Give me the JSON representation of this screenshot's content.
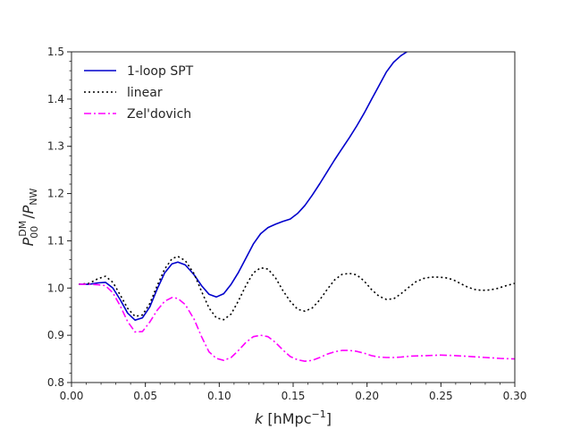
{
  "chart_data": {
    "type": "line",
    "xlabel": {
      "italic": "k",
      "pre": " [",
      "unit": "hMpc",
      "sup": "−1",
      "post": "]"
    },
    "ylabel": {
      "p1": "P",
      "sup1": "DM",
      "sub1": "00",
      "sep": "/",
      "p2": "P",
      "sub2": "NW"
    },
    "xlim": [
      0.0,
      0.3
    ],
    "ylim": [
      0.8,
      1.5
    ],
    "xticks": [
      "0.00",
      "0.05",
      "0.10",
      "0.15",
      "0.20",
      "0.25",
      "0.30"
    ],
    "yticks": [
      "0.8",
      "0.9",
      "1.0",
      "1.1",
      "1.2",
      "1.3",
      "1.4",
      "1.5"
    ],
    "grid": false,
    "legend_position": "top-left",
    "series": [
      {
        "name": "1-loop SPT",
        "color": "#0000cc",
        "style": "solid",
        "points": [
          [
            0.005,
            1.008
          ],
          [
            0.012,
            1.008
          ],
          [
            0.018,
            1.011
          ],
          [
            0.023,
            1.012
          ],
          [
            0.028,
            1.0
          ],
          [
            0.033,
            0.975
          ],
          [
            0.038,
            0.947
          ],
          [
            0.043,
            0.932
          ],
          [
            0.048,
            0.937
          ],
          [
            0.053,
            0.96
          ],
          [
            0.058,
            0.998
          ],
          [
            0.063,
            1.032
          ],
          [
            0.068,
            1.051
          ],
          [
            0.072,
            1.055
          ],
          [
            0.077,
            1.049
          ],
          [
            0.083,
            1.028
          ],
          [
            0.088,
            1.005
          ],
          [
            0.093,
            0.987
          ],
          [
            0.098,
            0.981
          ],
          [
            0.103,
            0.988
          ],
          [
            0.108,
            1.008
          ],
          [
            0.113,
            1.033
          ],
          [
            0.118,
            1.063
          ],
          [
            0.123,
            1.093
          ],
          [
            0.128,
            1.115
          ],
          [
            0.133,
            1.128
          ],
          [
            0.138,
            1.135
          ],
          [
            0.143,
            1.141
          ],
          [
            0.148,
            1.146
          ],
          [
            0.153,
            1.158
          ],
          [
            0.158,
            1.175
          ],
          [
            0.163,
            1.197
          ],
          [
            0.168,
            1.221
          ],
          [
            0.173,
            1.246
          ],
          [
            0.178,
            1.271
          ],
          [
            0.183,
            1.295
          ],
          [
            0.188,
            1.318
          ],
          [
            0.193,
            1.343
          ],
          [
            0.198,
            1.37
          ],
          [
            0.203,
            1.399
          ],
          [
            0.208,
            1.428
          ],
          [
            0.213,
            1.457
          ],
          [
            0.218,
            1.478
          ],
          [
            0.223,
            1.492
          ],
          [
            0.227,
            1.5
          ]
        ]
      },
      {
        "name": "linear",
        "color": "#000000",
        "style": "dotted",
        "points": [
          [
            0.005,
            1.008
          ],
          [
            0.012,
            1.01
          ],
          [
            0.018,
            1.02
          ],
          [
            0.023,
            1.025
          ],
          [
            0.028,
            1.012
          ],
          [
            0.033,
            0.985
          ],
          [
            0.038,
            0.957
          ],
          [
            0.043,
            0.94
          ],
          [
            0.048,
            0.943
          ],
          [
            0.053,
            0.967
          ],
          [
            0.058,
            1.005
          ],
          [
            0.063,
            1.04
          ],
          [
            0.068,
            1.062
          ],
          [
            0.072,
            1.067
          ],
          [
            0.077,
            1.058
          ],
          [
            0.083,
            1.03
          ],
          [
            0.088,
            0.993
          ],
          [
            0.093,
            0.958
          ],
          [
            0.098,
            0.937
          ],
          [
            0.103,
            0.933
          ],
          [
            0.108,
            0.945
          ],
          [
            0.113,
            0.973
          ],
          [
            0.118,
            1.005
          ],
          [
            0.123,
            1.032
          ],
          [
            0.128,
            1.043
          ],
          [
            0.133,
            1.04
          ],
          [
            0.138,
            1.022
          ],
          [
            0.143,
            0.995
          ],
          [
            0.148,
            0.972
          ],
          [
            0.153,
            0.955
          ],
          [
            0.158,
            0.951
          ],
          [
            0.163,
            0.958
          ],
          [
            0.168,
            0.975
          ],
          [
            0.173,
            0.997
          ],
          [
            0.178,
            1.017
          ],
          [
            0.183,
            1.029
          ],
          [
            0.188,
            1.031
          ],
          [
            0.193,
            1.028
          ],
          [
            0.198,
            1.015
          ],
          [
            0.203,
            0.997
          ],
          [
            0.208,
            0.983
          ],
          [
            0.213,
            0.976
          ],
          [
            0.218,
            0.977
          ],
          [
            0.223,
            0.988
          ],
          [
            0.228,
            1.001
          ],
          [
            0.233,
            1.013
          ],
          [
            0.238,
            1.02
          ],
          [
            0.243,
            1.023
          ],
          [
            0.248,
            1.023
          ],
          [
            0.253,
            1.022
          ],
          [
            0.258,
            1.018
          ],
          [
            0.263,
            1.01
          ],
          [
            0.268,
            1.002
          ],
          [
            0.273,
            0.997
          ],
          [
            0.278,
            0.995
          ],
          [
            0.283,
            0.996
          ],
          [
            0.288,
            0.999
          ],
          [
            0.293,
            1.004
          ],
          [
            0.3,
            1.01
          ]
        ]
      },
      {
        "name": "Zel'dovich",
        "color": "#ff00ff",
        "style": "dashdot",
        "points": [
          [
            0.005,
            1.008
          ],
          [
            0.012,
            1.008
          ],
          [
            0.018,
            1.007
          ],
          [
            0.023,
            1.005
          ],
          [
            0.028,
            0.99
          ],
          [
            0.033,
            0.962
          ],
          [
            0.038,
            0.929
          ],
          [
            0.043,
            0.907
          ],
          [
            0.048,
            0.908
          ],
          [
            0.053,
            0.928
          ],
          [
            0.058,
            0.953
          ],
          [
            0.063,
            0.972
          ],
          [
            0.068,
            0.98
          ],
          [
            0.072,
            0.978
          ],
          [
            0.077,
            0.965
          ],
          [
            0.083,
            0.934
          ],
          [
            0.088,
            0.897
          ],
          [
            0.093,
            0.865
          ],
          [
            0.098,
            0.851
          ],
          [
            0.103,
            0.847
          ],
          [
            0.108,
            0.853
          ],
          [
            0.113,
            0.868
          ],
          [
            0.118,
            0.885
          ],
          [
            0.123,
            0.897
          ],
          [
            0.128,
            0.9
          ],
          [
            0.133,
            0.897
          ],
          [
            0.138,
            0.885
          ],
          [
            0.143,
            0.869
          ],
          [
            0.148,
            0.855
          ],
          [
            0.153,
            0.848
          ],
          [
            0.158,
            0.845
          ],
          [
            0.163,
            0.847
          ],
          [
            0.168,
            0.853
          ],
          [
            0.173,
            0.86
          ],
          [
            0.178,
            0.865
          ],
          [
            0.183,
            0.868
          ],
          [
            0.188,
            0.868
          ],
          [
            0.193,
            0.866
          ],
          [
            0.198,
            0.862
          ],
          [
            0.203,
            0.857
          ],
          [
            0.208,
            0.854
          ],
          [
            0.213,
            0.853
          ],
          [
            0.218,
            0.853
          ],
          [
            0.223,
            0.854
          ],
          [
            0.23,
            0.856
          ],
          [
            0.24,
            0.857
          ],
          [
            0.25,
            0.858
          ],
          [
            0.26,
            0.857
          ],
          [
            0.27,
            0.855
          ],
          [
            0.28,
            0.853
          ],
          [
            0.29,
            0.851
          ],
          [
            0.3,
            0.85
          ]
        ]
      }
    ]
  }
}
